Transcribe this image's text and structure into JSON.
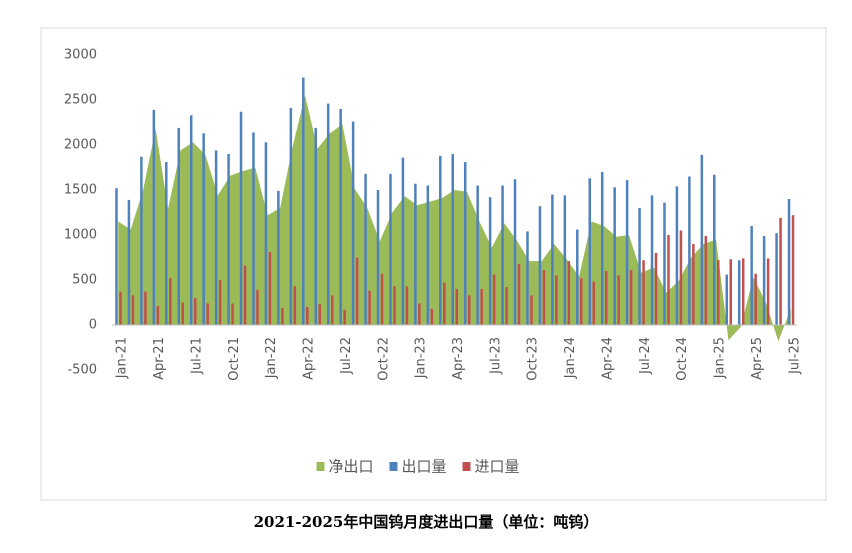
{
  "chart_data": {
    "type": "bar-area",
    "title": "2021-2025年中国钨月度进出口量（单位：吨钨）",
    "categories": [
      "Jan-21",
      null,
      null,
      "Apr-21",
      null,
      null,
      "Jul-21",
      null,
      null,
      "Oct-21",
      null,
      null,
      "Jan-22",
      null,
      null,
      "Apr-22",
      null,
      null,
      "Jul-22",
      null,
      null,
      "Oct-22",
      null,
      null,
      "Jan-23",
      null,
      null,
      "Apr-23",
      null,
      null,
      "Jul-23",
      null,
      null,
      "Oct-23",
      null,
      null,
      "Jan-24",
      null,
      null,
      "Apr-24",
      null,
      null,
      "Jul-24",
      null,
      null,
      "Oct-24",
      null,
      null,
      "Jan-25",
      null,
      null,
      "Apr-25",
      null,
      null,
      "Jul-25"
    ],
    "series": [
      {
        "name": "净出口",
        "color": "#9bbb59",
        "kind": "area",
        "values": [
          1150,
          1060,
          1500,
          2180,
          1290,
          1940,
          2030,
          1890,
          1440,
          1660,
          1710,
          1750,
          1220,
          1300,
          1980,
          2550,
          1960,
          2130,
          2230,
          1510,
          1300,
          930,
          1250,
          1430,
          1330,
          1370,
          1410,
          1500,
          1480,
          1150,
          860,
          1130,
          940,
          710,
          710,
          900,
          730,
          540,
          1150,
          1100,
          980,
          1000,
          580,
          640,
          360,
          490,
          750,
          900,
          950,
          -170,
          -20,
          530,
          250,
          -180,
          180
        ]
      },
      {
        "name": "出口量",
        "color": "#4f81bd",
        "kind": "bar",
        "values": [
          1520,
          1390,
          1870,
          2390,
          1810,
          2190,
          2330,
          2130,
          1940,
          1900,
          2370,
          2140,
          2030,
          1490,
          2410,
          2750,
          2190,
          2460,
          2400,
          2260,
          1680,
          1500,
          1680,
          1860,
          1570,
          1550,
          1880,
          1900,
          1810,
          1550,
          1420,
          1550,
          1620,
          1040,
          1320,
          1450,
          1440,
          1060,
          1630,
          1700,
          1530,
          1610,
          1300,
          1440,
          1360,
          1540,
          1650,
          1890,
          1670,
          560,
          720,
          1100,
          990,
          1020,
          1400
        ]
      },
      {
        "name": "进口量",
        "color": "#c0504d",
        "kind": "bar",
        "values": [
          370,
          330,
          370,
          210,
          520,
          250,
          300,
          240,
          500,
          240,
          660,
          390,
          810,
          190,
          430,
          200,
          230,
          330,
          170,
          750,
          380,
          570,
          430,
          430,
          240,
          180,
          470,
          400,
          330,
          400,
          560,
          420,
          680,
          330,
          610,
          550,
          710,
          520,
          480,
          600,
          550,
          610,
          720,
          800,
          1000,
          1050,
          900,
          990,
          720,
          730,
          740,
          570,
          740,
          1190,
          1220
        ]
      }
    ],
    "ylim": [
      -500,
      3000
    ],
    "yticks": [
      -500,
      0,
      500,
      1000,
      1500,
      2000,
      2500,
      3000
    ],
    "legend": "bottom"
  }
}
